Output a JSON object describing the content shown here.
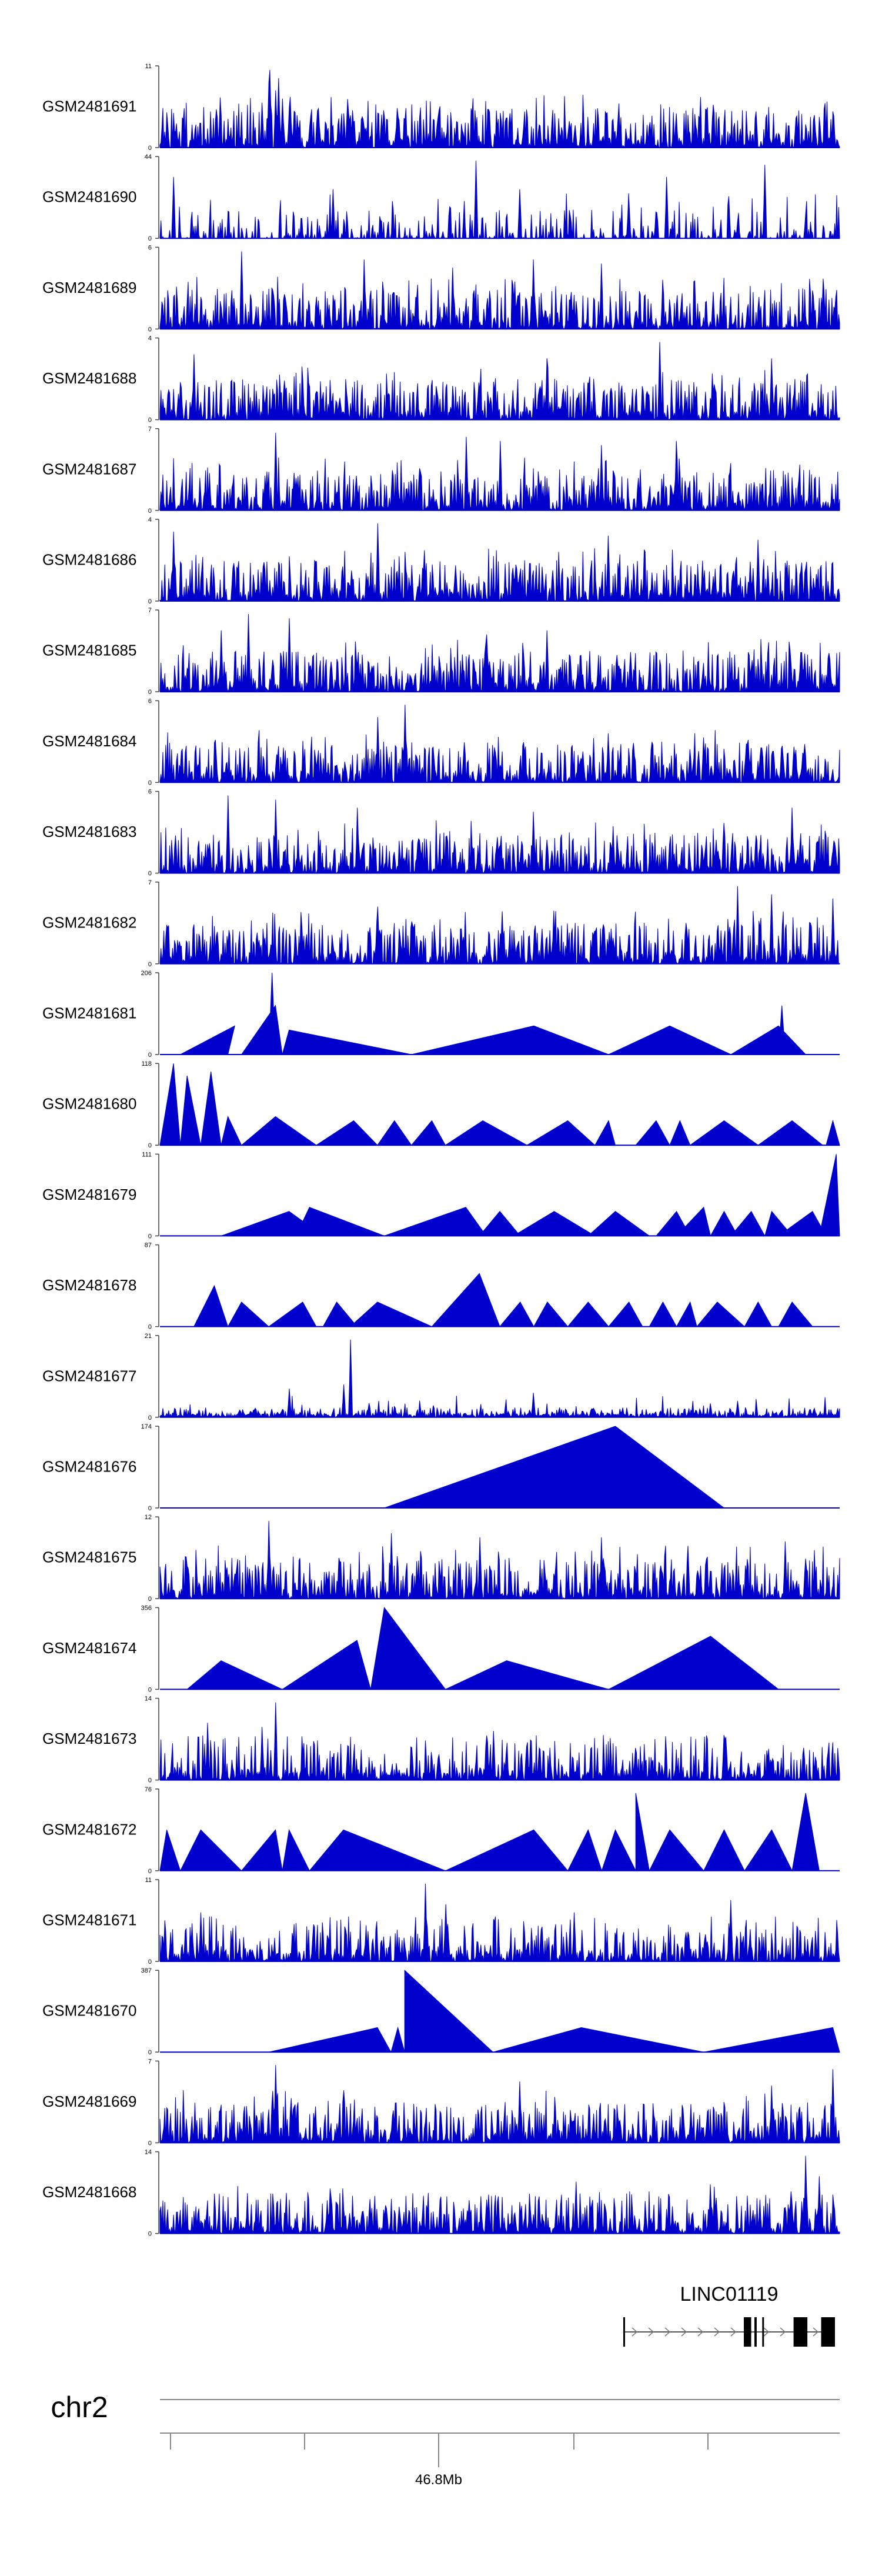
{
  "colors": {
    "signal": "#0000cc",
    "axis": "#444444",
    "gene": "#000000",
    "ideogram": "#888888"
  },
  "chart_data": {
    "type": "area",
    "tracks": [
      {
        "name": "GSM2481691",
        "ymin": 0,
        "ymax": 11,
        "profile": "dense",
        "seed": 91,
        "peaks": [
          [
            0.15,
            0.55
          ],
          [
            0.16,
            0.8
          ],
          [
            0.162,
            0.95
          ],
          [
            0.17,
            0.7
          ],
          [
            0.175,
            0.85
          ],
          [
            0.18,
            0.6
          ],
          [
            0.19,
            0.5
          ]
        ]
      },
      {
        "name": "GSM2481690",
        "ymin": 0,
        "ymax": 44,
        "profile": "sparse",
        "seed": 90,
        "peaks": [
          [
            0.465,
            0.95
          ],
          [
            0.89,
            0.9
          ],
          [
            0.745,
            0.75
          ],
          [
            0.02,
            0.75
          ],
          [
            0.255,
            0.6
          ],
          [
            0.53,
            0.6
          ],
          [
            0.69,
            0.55
          ]
        ]
      },
      {
        "name": "GSM2481689",
        "ymin": 0,
        "ymax": 6,
        "profile": "dense",
        "seed": 89,
        "peaks": [
          [
            0.12,
            0.95
          ],
          [
            0.3,
            0.85
          ],
          [
            0.55,
            0.85
          ],
          [
            0.65,
            0.8
          ],
          [
            0.43,
            0.75
          ]
        ]
      },
      {
        "name": "GSM2481688",
        "ymin": 0,
        "ymax": 4,
        "profile": "dense",
        "seed": 88,
        "peaks": [
          [
            0.735,
            0.95
          ],
          [
            0.05,
            0.8
          ],
          [
            0.57,
            0.75
          ],
          [
            0.9,
            0.75
          ]
        ]
      },
      {
        "name": "GSM2481687",
        "ymin": 0,
        "ymax": 7,
        "profile": "dense",
        "seed": 87,
        "peaks": [
          [
            0.17,
            0.95
          ],
          [
            0.45,
            0.9
          ],
          [
            0.5,
            0.85
          ],
          [
            0.76,
            0.85
          ],
          [
            0.65,
            0.8
          ]
        ]
      },
      {
        "name": "GSM2481686",
        "ymin": 0,
        "ymax": 4,
        "profile": "dense",
        "seed": 86,
        "peaks": [
          [
            0.32,
            0.95
          ],
          [
            0.02,
            0.85
          ],
          [
            0.66,
            0.8
          ],
          [
            0.88,
            0.75
          ]
        ]
      },
      {
        "name": "GSM2481685",
        "ymin": 0,
        "ymax": 7,
        "profile": "dense",
        "seed": 85,
        "peaks": [
          [
            0.13,
            0.95
          ],
          [
            0.19,
            0.9
          ],
          [
            0.09,
            0.75
          ],
          [
            0.48,
            0.7
          ],
          [
            0.57,
            0.75
          ]
        ]
      },
      {
        "name": "GSM2481684",
        "ymin": 0,
        "ymax": 6,
        "profile": "dense",
        "seed": 84,
        "peaks": [
          [
            0.36,
            0.95
          ],
          [
            0.32,
            0.8
          ],
          [
            0.66,
            0.6
          ],
          [
            0.8,
            0.55
          ]
        ]
      },
      {
        "name": "GSM2481683",
        "ymin": 0,
        "ymax": 6,
        "profile": "dense",
        "seed": 83,
        "peaks": [
          [
            0.1,
            0.95
          ],
          [
            0.17,
            0.9
          ],
          [
            0.29,
            0.8
          ],
          [
            0.93,
            0.8
          ],
          [
            0.55,
            0.75
          ]
        ]
      },
      {
        "name": "GSM2481682",
        "ymin": 0,
        "ymax": 7,
        "profile": "dense",
        "seed": 82,
        "peaks": [
          [
            0.85,
            0.95
          ],
          [
            0.9,
            0.85
          ],
          [
            0.99,
            0.8
          ],
          [
            0.32,
            0.7
          ],
          [
            0.58,
            0.65
          ]
        ]
      },
      {
        "name": "GSM2481681",
        "ymin": 0,
        "ymax": 206,
        "profile": "triangles",
        "seed": 81,
        "tri": [
          [
            0.03,
            0.11,
            0.1,
            0.35
          ],
          [
            0.12,
            0.17,
            0.18,
            0.6
          ],
          [
            0.16,
            0.165,
            0.17,
            1.0
          ],
          [
            0.18,
            0.19,
            0.37,
            0.3
          ],
          [
            0.37,
            0.55,
            0.66,
            0.35
          ],
          [
            0.66,
            0.75,
            0.84,
            0.35
          ],
          [
            0.84,
            0.91,
            0.95,
            0.35
          ],
          [
            0.91,
            0.915,
            0.92,
            0.6
          ]
        ]
      },
      {
        "name": "GSM2481680",
        "ymin": 0,
        "ymax": 118,
        "profile": "triangles",
        "seed": 80,
        "tri": [
          [
            0.0,
            0.02,
            0.03,
            1.0
          ],
          [
            0.03,
            0.04,
            0.06,
            0.85
          ],
          [
            0.06,
            0.075,
            0.09,
            0.9
          ],
          [
            0.09,
            0.1,
            0.12,
            0.35
          ],
          [
            0.12,
            0.17,
            0.23,
            0.35
          ],
          [
            0.23,
            0.285,
            0.32,
            0.3
          ],
          [
            0.32,
            0.345,
            0.37,
            0.3
          ],
          [
            0.37,
            0.4,
            0.42,
            0.3
          ],
          [
            0.42,
            0.475,
            0.54,
            0.3
          ],
          [
            0.54,
            0.6,
            0.64,
            0.3
          ],
          [
            0.64,
            0.66,
            0.67,
            0.3
          ],
          [
            0.7,
            0.73,
            0.75,
            0.3
          ],
          [
            0.75,
            0.765,
            0.78,
            0.3
          ],
          [
            0.78,
            0.83,
            0.88,
            0.3
          ],
          [
            0.88,
            0.93,
            0.975,
            0.3
          ],
          [
            0.98,
            0.99,
            1.0,
            0.3
          ]
        ]
      },
      {
        "name": "GSM2481679",
        "ymin": 0,
        "ymax": 111,
        "profile": "triangles",
        "seed": 79,
        "tri": [
          [
            0.09,
            0.19,
            0.24,
            0.3
          ],
          [
            0.2,
            0.22,
            0.33,
            0.35
          ],
          [
            0.33,
            0.45,
            0.48,
            0.35
          ],
          [
            0.47,
            0.5,
            0.53,
            0.3
          ],
          [
            0.52,
            0.58,
            0.64,
            0.3
          ],
          [
            0.63,
            0.67,
            0.72,
            0.3
          ],
          [
            0.73,
            0.76,
            0.78,
            0.3
          ],
          [
            0.76,
            0.8,
            0.81,
            0.35
          ],
          [
            0.81,
            0.83,
            0.85,
            0.3
          ],
          [
            0.84,
            0.87,
            0.89,
            0.3
          ],
          [
            0.89,
            0.9,
            0.93,
            0.3
          ],
          [
            0.91,
            0.96,
            0.98,
            0.3
          ],
          [
            0.97,
            0.995,
            1.0,
            1.0
          ]
        ]
      },
      {
        "name": "GSM2481678",
        "ymin": 0,
        "ymax": 87,
        "profile": "triangles",
        "seed": 78,
        "tri": [
          [
            0.05,
            0.08,
            0.1,
            0.5
          ],
          [
            0.1,
            0.12,
            0.16,
            0.3
          ],
          [
            0.16,
            0.21,
            0.23,
            0.3
          ],
          [
            0.24,
            0.26,
            0.29,
            0.3
          ],
          [
            0.28,
            0.32,
            0.4,
            0.3
          ],
          [
            0.4,
            0.47,
            0.5,
            0.65
          ],
          [
            0.5,
            0.53,
            0.55,
            0.3
          ],
          [
            0.55,
            0.57,
            0.6,
            0.3
          ],
          [
            0.6,
            0.63,
            0.66,
            0.3
          ],
          [
            0.66,
            0.69,
            0.71,
            0.3
          ],
          [
            0.72,
            0.74,
            0.76,
            0.3
          ],
          [
            0.76,
            0.78,
            0.79,
            0.3
          ],
          [
            0.79,
            0.82,
            0.86,
            0.3
          ],
          [
            0.86,
            0.88,
            0.9,
            0.3
          ],
          [
            0.91,
            0.93,
            0.96,
            0.3
          ]
        ]
      },
      {
        "name": "GSM2481677",
        "ymin": 0,
        "ymax": 21,
        "profile": "low",
        "seed": 77,
        "peaks": [
          [
            0.28,
            0.95
          ],
          [
            0.27,
            0.4
          ],
          [
            0.19,
            0.35
          ],
          [
            0.55,
            0.3
          ],
          [
            0.85,
            0.2
          ]
        ]
      },
      {
        "name": "GSM2481676",
        "ymin": 0,
        "ymax": 174,
        "profile": "triangles",
        "seed": 76,
        "tri": [
          [
            0.33,
            0.67,
            0.83,
            1.0
          ]
        ]
      },
      {
        "name": "GSM2481675",
        "ymin": 0,
        "ymax": 12,
        "profile": "dense",
        "seed": 75,
        "peaks": [
          [
            0.16,
            0.95
          ],
          [
            0.34,
            0.8
          ],
          [
            0.47,
            0.75
          ],
          [
            0.65,
            0.75
          ],
          [
            0.92,
            0.7
          ]
        ]
      },
      {
        "name": "GSM2481674",
        "ymin": 0,
        "ymax": 356,
        "profile": "triangles",
        "seed": 74,
        "tri": [
          [
            0.04,
            0.09,
            0.18,
            0.35
          ],
          [
            0.18,
            0.29,
            0.31,
            0.6
          ],
          [
            0.31,
            0.33,
            0.42,
            1.0
          ],
          [
            0.42,
            0.51,
            0.66,
            0.35
          ],
          [
            0.66,
            0.81,
            0.91,
            0.65
          ]
        ]
      },
      {
        "name": "GSM2481673",
        "ymin": 0,
        "ymax": 14,
        "profile": "sparse_dense",
        "seed": 73,
        "peaks": [
          [
            0.17,
            0.95
          ],
          [
            0.15,
            0.65
          ],
          [
            0.07,
            0.7
          ],
          [
            0.49,
            0.6
          ],
          [
            0.83,
            0.55
          ]
        ]
      },
      {
        "name": "GSM2481672",
        "ymin": 0,
        "ymax": 76,
        "profile": "triangles",
        "seed": 72,
        "tri": [
          [
            0.0,
            0.01,
            0.03,
            0.5
          ],
          [
            0.03,
            0.06,
            0.12,
            0.5
          ],
          [
            0.12,
            0.17,
            0.18,
            0.5
          ],
          [
            0.18,
            0.19,
            0.22,
            0.5
          ],
          [
            0.22,
            0.27,
            0.42,
            0.5
          ],
          [
            0.42,
            0.55,
            0.6,
            0.5
          ],
          [
            0.6,
            0.63,
            0.65,
            0.5
          ],
          [
            0.65,
            0.67,
            0.7,
            0.5
          ],
          [
            0.7,
            0.7,
            0.72,
            0.95
          ],
          [
            0.72,
            0.75,
            0.8,
            0.5
          ],
          [
            0.8,
            0.83,
            0.86,
            0.5
          ],
          [
            0.86,
            0.9,
            0.93,
            0.5
          ],
          [
            0.93,
            0.95,
            0.97,
            0.95
          ]
        ]
      },
      {
        "name": "GSM2481671",
        "ymin": 0,
        "ymax": 11,
        "profile": "sparse_dense",
        "seed": 71,
        "peaks": [
          [
            0.39,
            0.95
          ],
          [
            0.06,
            0.6
          ],
          [
            0.42,
            0.7
          ],
          [
            0.84,
            0.75
          ],
          [
            0.61,
            0.6
          ]
        ]
      },
      {
        "name": "GSM2481670",
        "ymin": 0,
        "ymax": 387,
        "profile": "triangles",
        "seed": 70,
        "tri": [
          [
            0.16,
            0.32,
            0.34,
            0.3
          ],
          [
            0.34,
            0.35,
            0.36,
            0.3
          ],
          [
            0.36,
            0.36,
            0.49,
            1.0
          ],
          [
            0.49,
            0.62,
            0.8,
            0.3
          ],
          [
            0.8,
            0.99,
            1.0,
            0.3
          ]
        ]
      },
      {
        "name": "GSM2481669",
        "ymin": 0,
        "ymax": 7,
        "profile": "dense",
        "seed": 69,
        "peaks": [
          [
            0.17,
            0.95
          ],
          [
            0.99,
            0.9
          ],
          [
            0.53,
            0.75
          ],
          [
            0.9,
            0.7
          ]
        ]
      },
      {
        "name": "GSM2481668",
        "ymin": 0,
        "ymax": 14,
        "profile": "dense",
        "seed": 68,
        "peaks": [
          [
            0.95,
            0.95
          ],
          [
            0.81,
            0.6
          ],
          [
            0.25,
            0.55
          ],
          [
            0.97,
            0.7
          ]
        ]
      }
    ],
    "gene": {
      "name": "LINC01119",
      "strand": "+",
      "exons": [
        [
          0.0,
          0.003
        ],
        [
          0.262,
          0.278
        ],
        [
          0.285,
          0.29
        ],
        [
          0.302,
          0.304
        ],
        [
          0.37,
          0.4
        ],
        [
          0.43,
          0.46
        ]
      ]
    },
    "chromosome": "chr2",
    "position_label": "46.8Mb"
  }
}
